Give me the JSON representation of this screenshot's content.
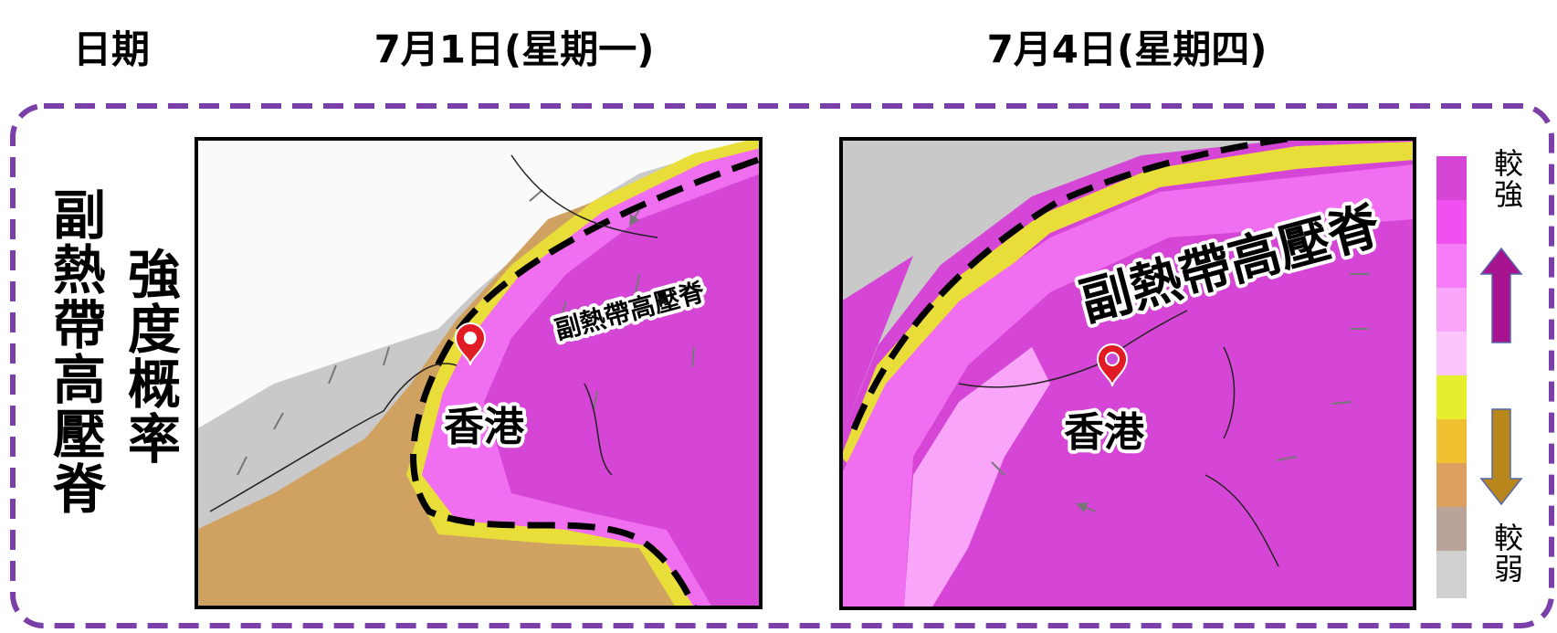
{
  "header": {
    "date_label": "日期",
    "dates": [
      "7月1日(星期一)",
      "7月4日(星期四)"
    ]
  },
  "row_label": [
    "副熱帶高壓脊",
    "強度概率"
  ],
  "maps": [
    {
      "ridge_label": "副熱帶高壓脊",
      "city_label": "香港"
    },
    {
      "ridge_label": "副熱帶高壓脊",
      "city_label": "香港"
    }
  ],
  "legend": {
    "top": "較強",
    "bottom": "較弱"
  }
}
